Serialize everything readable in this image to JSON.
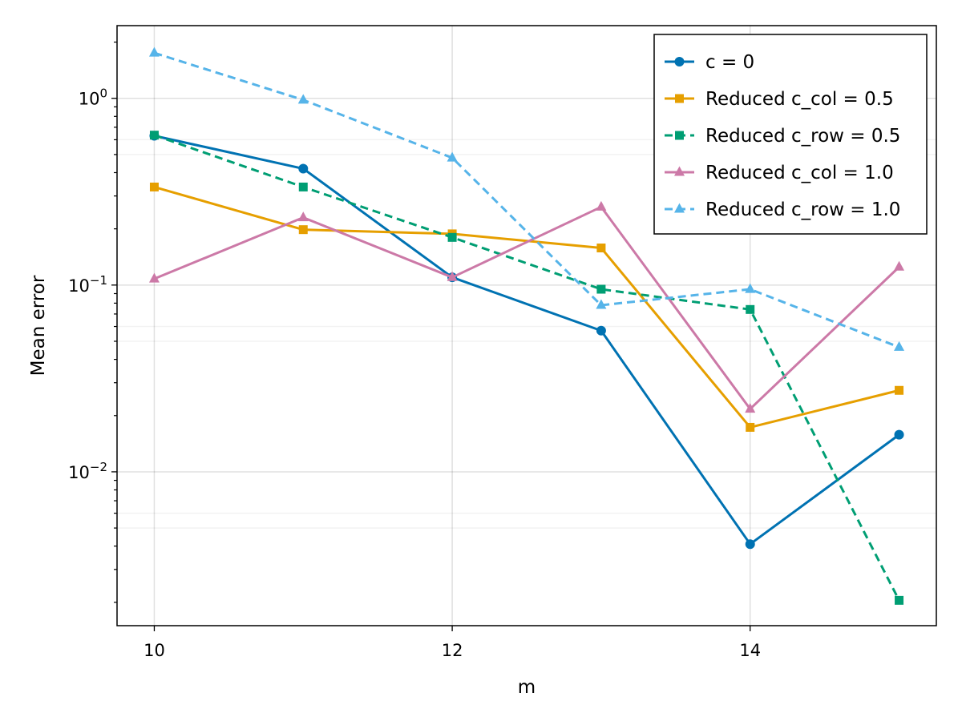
{
  "chart_data": {
    "type": "line",
    "xlabel": "m",
    "ylabel": "Mean error",
    "x": [
      10,
      11,
      12,
      13,
      14,
      15
    ],
    "x_ticks": [
      10,
      12,
      14
    ],
    "x_tick_labels": [
      "10",
      "12",
      "14"
    ],
    "xlim": [
      9.75,
      15.25
    ],
    "yscale": "log",
    "ylim": [
      0.0015,
      2.45
    ],
    "y_ticks_major": [
      1,
      0.1,
      0.01
    ],
    "y_tick_labels": [
      {
        "base": "10",
        "exp": "0"
      },
      {
        "base": "10",
        "exp": "−1"
      },
      {
        "base": "10",
        "exp": "−2"
      }
    ],
    "grid": true,
    "legend_position": "top-right",
    "series": [
      {
        "name": "c = 0",
        "values": [
          0.63,
          0.42,
          0.11,
          0.057,
          0.0041,
          0.0158
        ],
        "color": "#0072B2",
        "marker": "circle",
        "dashed": false
      },
      {
        "name": "Reduced c_col = 0.5",
        "values": [
          0.335,
          0.198,
          0.188,
          0.158,
          0.0173,
          0.0273
        ],
        "color": "#E69F00",
        "marker": "square",
        "dashed": false
      },
      {
        "name": "Reduced c_row = 0.5",
        "values": [
          0.635,
          0.335,
          0.18,
          0.095,
          0.074,
          0.00205
        ],
        "color": "#009E73",
        "marker": "square",
        "dashed": true
      },
      {
        "name": "Reduced c_col = 1.0",
        "values": [
          0.108,
          0.23,
          0.11,
          0.262,
          0.0217,
          0.125
        ],
        "color": "#CC79A7",
        "marker": "triangle",
        "dashed": false
      },
      {
        "name": "Reduced c_row = 1.0",
        "values": [
          1.75,
          0.98,
          0.48,
          0.078,
          0.095,
          0.0465
        ],
        "color": "#56B4E9",
        "marker": "triangle",
        "dashed": true
      }
    ]
  }
}
